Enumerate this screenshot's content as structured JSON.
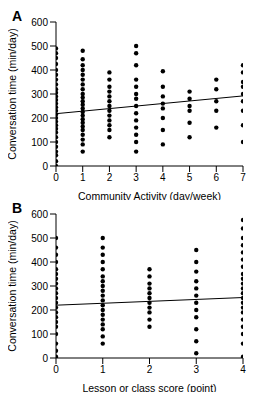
{
  "chart_data": [
    {
      "type": "scatter",
      "title": "A",
      "x_label": "Community Activity (day/week)",
      "y_label": "Conversation time (min/day)",
      "xlim": [
        0,
        7
      ],
      "xticks": [
        0,
        1,
        2,
        3,
        4,
        5,
        6,
        7
      ],
      "ylim": [
        0,
        600
      ],
      "yticks": [
        0,
        100,
        200,
        300,
        400,
        500,
        600
      ],
      "color": "#000000",
      "marker": "circle",
      "points": [
        {
          "x": 0,
          "values": [
            0,
            20,
            45,
            60,
            80,
            100,
            120,
            140,
            155,
            170,
            185,
            200,
            215,
            230,
            245,
            260,
            275,
            290,
            305,
            320,
            340,
            360,
            380,
            400,
            425,
            450,
            470,
            490
          ]
        },
        {
          "x": 1,
          "values": [
            60,
            90,
            110,
            130,
            150,
            165,
            180,
            195,
            210,
            225,
            240,
            255,
            270,
            285,
            300,
            320,
            340,
            360,
            380,
            400,
            420,
            445,
            480
          ]
        },
        {
          "x": 2,
          "values": [
            120,
            150,
            170,
            190,
            210,
            230,
            250,
            270,
            290,
            310,
            330,
            360,
            390
          ]
        },
        {
          "x": 3,
          "values": [
            60,
            100,
            130,
            160,
            190,
            220,
            250,
            280,
            300,
            330,
            360,
            420,
            470,
            500
          ]
        },
        {
          "x": 4,
          "values": [
            90,
            150,
            200,
            240,
            260,
            290,
            330,
            395
          ]
        },
        {
          "x": 5,
          "values": [
            120,
            180,
            230,
            250,
            280,
            310
          ]
        },
        {
          "x": 6,
          "values": [
            160,
            230,
            270,
            320,
            360
          ]
        },
        {
          "x": 7,
          "values": [
            100,
            170,
            230,
            270,
            300,
            330,
            350,
            390,
            420
          ]
        }
      ],
      "trend_line": {
        "x": [
          0,
          7
        ],
        "values": [
          218,
          292
        ]
      }
    },
    {
      "type": "scatter",
      "title": "B",
      "x_label": "Lesson or class score (point)",
      "y_label": "Conversation time (min/day)",
      "xlim": [
        0,
        4
      ],
      "xticks": [
        0,
        1,
        2,
        3,
        4
      ],
      "ylim": [
        0,
        600
      ],
      "yticks": [
        0,
        100,
        200,
        300,
        400,
        500,
        600
      ],
      "color": "#000000",
      "marker": "circle",
      "points": [
        {
          "x": 0,
          "values": [
            5,
            30,
            60,
            100,
            130,
            150,
            170,
            190,
            210,
            230,
            250,
            270,
            290,
            310,
            330,
            350,
            370,
            400,
            430,
            460,
            500
          ]
        },
        {
          "x": 1,
          "values": [
            60,
            90,
            120,
            140,
            160,
            180,
            200,
            220,
            240,
            260,
            280,
            300,
            320,
            340,
            370,
            400,
            430,
            460,
            500
          ]
        },
        {
          "x": 2,
          "values": [
            130,
            160,
            190,
            210,
            230,
            250,
            270,
            290,
            310,
            340,
            370
          ]
        },
        {
          "x": 3,
          "values": [
            20,
            70,
            120,
            170,
            200,
            230,
            260,
            290,
            320,
            360,
            400,
            450
          ]
        },
        {
          "x": 4,
          "values": [
            5,
            60,
            100,
            130,
            160,
            190,
            210,
            230,
            250,
            270,
            290,
            310,
            330,
            350,
            380,
            410,
            440,
            470,
            500,
            540,
            575
          ]
        }
      ],
      "trend_line": {
        "x": [
          0,
          4
        ],
        "values": [
          220,
          252
        ]
      }
    }
  ]
}
